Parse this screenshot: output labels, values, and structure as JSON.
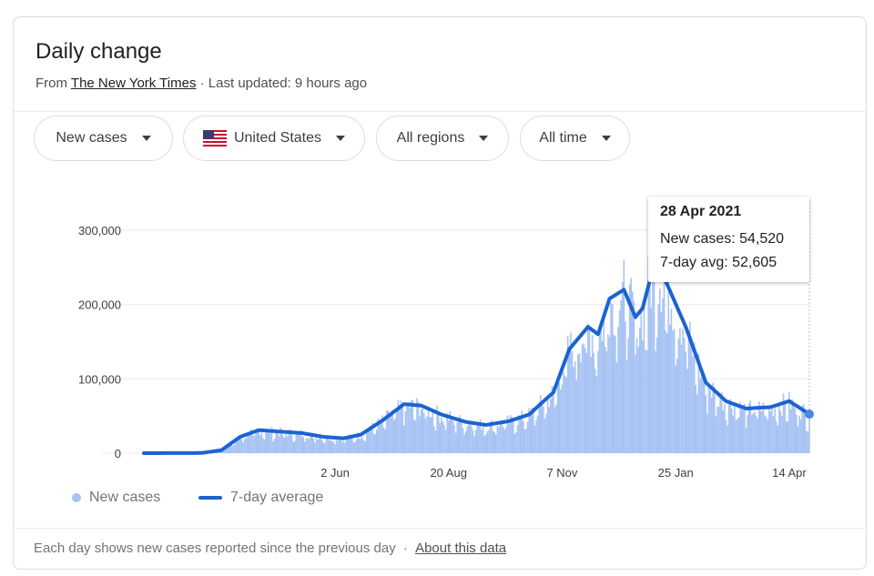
{
  "header": {
    "title": "Daily change",
    "from_prefix": "From ",
    "source_name": "The New York Times",
    "updated_text": " · Last updated: 9 hours ago"
  },
  "filters": [
    {
      "label": "New cases"
    },
    {
      "label": "United States",
      "icon": "us-flag-icon"
    },
    {
      "label": "All regions"
    },
    {
      "label": "All time"
    }
  ],
  "tooltip": {
    "date": "28 Apr 2021",
    "new_cases_label": "New cases: 54,520",
    "avg_label": "7-day avg: 52,605"
  },
  "legend": {
    "new_cases": "New cases",
    "average": "7-day average"
  },
  "footer": {
    "note": "Each day shows new cases reported since the previous day",
    "separator": " · ",
    "about_link": "About this data"
  },
  "colors": {
    "bar": "#a7c3f4",
    "line": "#1a63d2",
    "grid": "#ebebeb",
    "axis_text": "#3c4043"
  },
  "chart_data": {
    "type": "bar",
    "ylim": [
      0,
      300000
    ],
    "y_ticks": [
      {
        "value": 0,
        "label": "0"
      },
      {
        "value": 100000,
        "label": "100,000"
      },
      {
        "value": 200000,
        "label": "200,000"
      },
      {
        "value": 300000,
        "label": "300,000"
      }
    ],
    "x_range": [
      "2020-01-21",
      "2021-04-28"
    ],
    "x_ticks": [
      {
        "date": "2020-06-02",
        "label": "2 Jun"
      },
      {
        "date": "2020-08-20",
        "label": "20 Aug"
      },
      {
        "date": "2020-11-07",
        "label": "7 Nov"
      },
      {
        "date": "2021-01-25",
        "label": "25 Jan"
      },
      {
        "date": "2021-04-14",
        "label": "14 Apr"
      }
    ],
    "series": [
      {
        "name": "7-day average",
        "type": "line",
        "points": [
          [
            "2020-01-21",
            0
          ],
          [
            "2020-03-01",
            200
          ],
          [
            "2020-03-15",
            4000
          ],
          [
            "2020-03-28",
            22000
          ],
          [
            "2020-04-10",
            31000
          ],
          [
            "2020-04-25",
            29000
          ],
          [
            "2020-05-10",
            27000
          ],
          [
            "2020-05-25",
            22000
          ],
          [
            "2020-06-08",
            20000
          ],
          [
            "2020-06-20",
            25000
          ],
          [
            "2020-07-05",
            44000
          ],
          [
            "2020-07-20",
            66000
          ],
          [
            "2020-08-01",
            64000
          ],
          [
            "2020-08-15",
            52000
          ],
          [
            "2020-09-01",
            42000
          ],
          [
            "2020-09-15",
            38000
          ],
          [
            "2020-10-01",
            43000
          ],
          [
            "2020-10-15",
            52000
          ],
          [
            "2020-11-01",
            82000
          ],
          [
            "2020-11-12",
            140000
          ],
          [
            "2020-11-25",
            170000
          ],
          [
            "2020-12-02",
            160000
          ],
          [
            "2020-12-10",
            208000
          ],
          [
            "2020-12-20",
            220000
          ],
          [
            "2020-12-28",
            183000
          ],
          [
            "2021-01-02",
            195000
          ],
          [
            "2021-01-10",
            255000
          ],
          [
            "2021-01-15",
            245000
          ],
          [
            "2021-02-01",
            170000
          ],
          [
            "2021-02-15",
            95000
          ],
          [
            "2021-03-01",
            70000
          ],
          [
            "2021-03-15",
            60000
          ],
          [
            "2021-04-01",
            62000
          ],
          [
            "2021-04-14",
            70000
          ],
          [
            "2021-04-28",
            52605
          ]
        ]
      },
      {
        "name": "New cases",
        "type": "bar",
        "note": "daily values approximate the 7-day average with day-to-day variation; peak ~300,000 in early Jan 2021"
      }
    ],
    "highlight": {
      "date": "2021-04-28",
      "new_cases": 54520,
      "avg": 52605
    }
  }
}
